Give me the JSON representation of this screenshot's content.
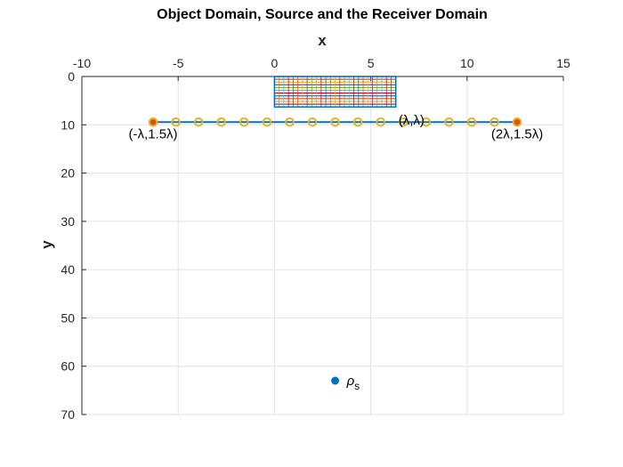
{
  "chart_data": {
    "type": "scatter",
    "title": "Object Domain, Source and the Receiver Domain",
    "xlabel": "x",
    "ylabel": "y",
    "xlim": [
      -10,
      15
    ],
    "ylim": [
      0,
      70
    ],
    "y_reversed": true,
    "x_axis_location": "top",
    "grid": true,
    "xticks": [
      -10,
      -5,
      0,
      5,
      10,
      15
    ],
    "xtick_labels": [
      "-10",
      "-5",
      "0",
      "5",
      "10",
      "15"
    ],
    "yticks": [
      0,
      10,
      20,
      30,
      40,
      50,
      60,
      70
    ],
    "ytick_labels": [
      "0",
      "10",
      "20",
      "30",
      "40",
      "50",
      "60",
      "70"
    ],
    "object_domain": {
      "x_range": [
        0,
        6.3
      ],
      "y_range": [
        0,
        6.3
      ],
      "grid_columns": 26,
      "grid_rows": 11,
      "color": "#0072BD"
    },
    "receiver_line": {
      "x": [
        -6.3,
        12.6
      ],
      "y": [
        9.45,
        9.45
      ],
      "color": "#0072BD"
    },
    "receivers": {
      "x": [
        -6.3,
        -5.12,
        -3.94,
        -2.76,
        -1.58,
        -0.39,
        0.79,
        1.97,
        3.15,
        4.33,
        5.51,
        6.69,
        7.88,
        9.06,
        10.24,
        11.42,
        12.6
      ],
      "y": [
        9.45,
        9.45,
        9.45,
        9.45,
        9.45,
        9.45,
        9.45,
        9.45,
        9.45,
        9.45,
        9.45,
        9.45,
        9.45,
        9.45,
        9.45,
        9.45,
        9.45
      ],
      "marker": "circle-open",
      "color": "#EDB120"
    },
    "endpoints": {
      "x": [
        -6.3,
        12.6
      ],
      "y": [
        9.45,
        9.45
      ],
      "color": "#D95319"
    },
    "source": {
      "x": [
        3.15
      ],
      "y": [
        63
      ],
      "color": "#0072BD",
      "label": "ρ",
      "label_sub": "s"
    },
    "annotations": [
      {
        "text": "(-λ,1.5λ)",
        "x": -6.3,
        "y": 9.45,
        "position": "below"
      },
      {
        "text": "(2λ,1.5λ)",
        "x": 12.6,
        "y": 9.45,
        "position": "below"
      },
      {
        "text": "(λ,λ)",
        "x": 6.3,
        "y": 6.3,
        "position": "below-right"
      }
    ]
  }
}
